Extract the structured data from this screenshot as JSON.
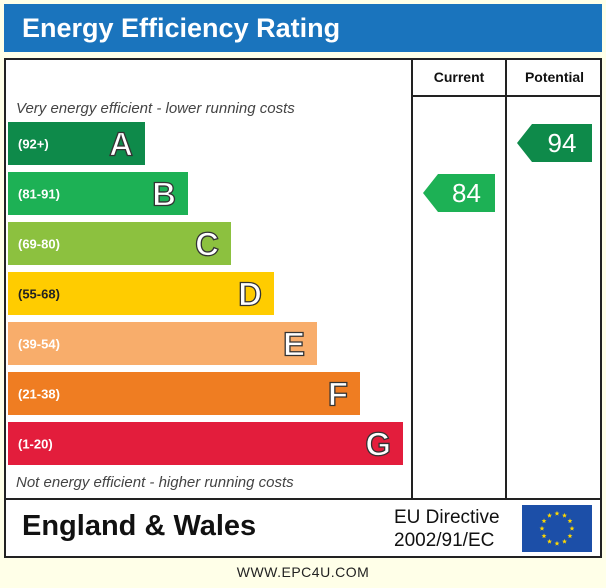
{
  "header": {
    "title": "Energy Efficiency Rating"
  },
  "chart_data": {
    "type": "bar",
    "columns": {
      "current": "Current",
      "potential": "Potential"
    },
    "top_caption": "Very energy efficient - lower running costs",
    "bottom_caption": "Not energy efficient - higher running costs",
    "bands": [
      {
        "range": "(92+)",
        "letter": "A",
        "color": "#0e8a4a"
      },
      {
        "range": "(81-91)",
        "letter": "B",
        "color": "#1db155"
      },
      {
        "range": "(69-80)",
        "letter": "C",
        "color": "#8cc13f"
      },
      {
        "range": "(55-68)",
        "letter": "D",
        "color": "#ffcc00"
      },
      {
        "range": "(39-54)",
        "letter": "E",
        "color": "#f8ad6b"
      },
      {
        "range": "(21-38)",
        "letter": "F",
        "color": "#ef7d22"
      },
      {
        "range": "(1-20)",
        "letter": "G",
        "color": "#e31d3c"
      }
    ],
    "current": {
      "value": 84,
      "band": "B",
      "color": "#1db155"
    },
    "potential": {
      "value": 94,
      "band": "A",
      "color": "#0e8a4a"
    }
  },
  "footer": {
    "region": "England & Wales",
    "directive_line1": "EU Directive",
    "directive_line2": "2002/91/EC",
    "flag_icon": "eu-flag-icon"
  },
  "site": "WWW.EPC4U.COM"
}
